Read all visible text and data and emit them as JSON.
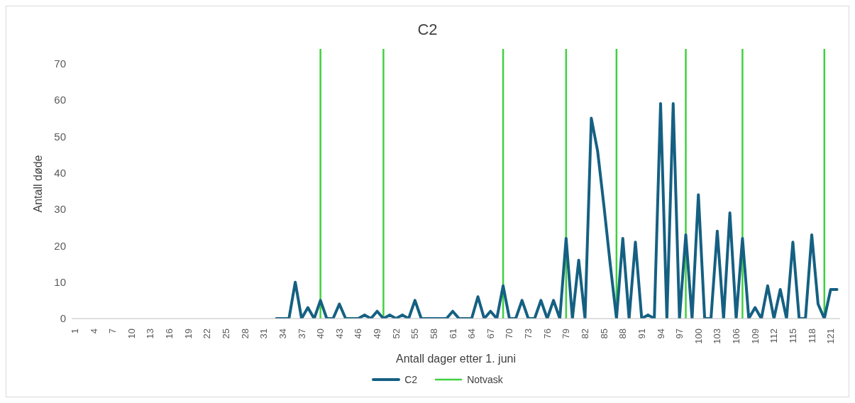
{
  "chart_data": {
    "type": "line",
    "title": "C2",
    "xlabel": "Antall dager etter 1. juni",
    "ylabel": "Antall døde",
    "x": [
      33,
      34,
      35,
      36,
      37,
      38,
      39,
      40,
      41,
      42,
      43,
      44,
      45,
      46,
      47,
      48,
      49,
      50,
      51,
      52,
      53,
      54,
      55,
      56,
      57,
      58,
      59,
      60,
      61,
      62,
      63,
      64,
      65,
      66,
      67,
      68,
      69,
      70,
      71,
      72,
      73,
      74,
      75,
      76,
      77,
      78,
      79,
      80,
      81,
      82,
      83,
      84,
      85,
      86,
      87,
      88,
      89,
      90,
      91,
      92,
      93,
      94,
      95,
      96,
      97,
      98,
      99,
      100,
      101,
      102,
      103,
      104,
      105,
      106,
      107,
      108,
      109,
      110,
      111,
      112,
      113,
      114,
      115,
      116,
      117,
      118,
      119,
      120,
      121,
      122
    ],
    "series": [
      {
        "name": "C2",
        "color": "#156082",
        "values": [
          0,
          0,
          0,
          10,
          0,
          3,
          0,
          5,
          0,
          0,
          4,
          0,
          0,
          0,
          1,
          0,
          2,
          0,
          1,
          0,
          1,
          0,
          5,
          0,
          0,
          0,
          0,
          0,
          2,
          0,
          0,
          0,
          6,
          0,
          2,
          0,
          9,
          0,
          0,
          5,
          0,
          0,
          5,
          0,
          5,
          0,
          22,
          0,
          16,
          0,
          55,
          46,
          31,
          15,
          0,
          22,
          0,
          21,
          0,
          1,
          0,
          59,
          0,
          59,
          0,
          23,
          0,
          34,
          0,
          0,
          24,
          0,
          29,
          0,
          22,
          0,
          3,
          0,
          9,
          0,
          8,
          0,
          21,
          0,
          0,
          23,
          4,
          0,
          8,
          8
        ]
      }
    ],
    "ref_lines": [
      {
        "axis": "x",
        "value": 40,
        "label": "Notvask",
        "color": "#3fd13f"
      },
      {
        "axis": "x",
        "value": 50,
        "color": "#3fd13f"
      },
      {
        "axis": "x",
        "value": 69,
        "color": "#3fd13f"
      },
      {
        "axis": "x",
        "value": 79,
        "color": "#3fd13f"
      },
      {
        "axis": "x",
        "value": 87,
        "color": "#3fd13f"
      },
      {
        "axis": "x",
        "value": 98,
        "color": "#3fd13f"
      },
      {
        "axis": "x",
        "value": 107,
        "color": "#3fd13f"
      },
      {
        "axis": "x",
        "value": 120,
        "color": "#3fd13f"
      }
    ],
    "xlim": [
      0.5,
      122.5
    ],
    "xticks": [
      1,
      4,
      7,
      10,
      13,
      16,
      19,
      22,
      25,
      28,
      31,
      34,
      37,
      40,
      43,
      46,
      49,
      52,
      55,
      58,
      61,
      64,
      67,
      70,
      73,
      76,
      79,
      82,
      85,
      88,
      91,
      94,
      97,
      100,
      103,
      106,
      109,
      112,
      115,
      118,
      121
    ],
    "ylim": [
      0,
      74
    ],
    "yticks": [
      0,
      10,
      20,
      30,
      40,
      50,
      60,
      70
    ],
    "grid": false,
    "legend": "bottom",
    "marker": "none",
    "line_style": "solid"
  }
}
